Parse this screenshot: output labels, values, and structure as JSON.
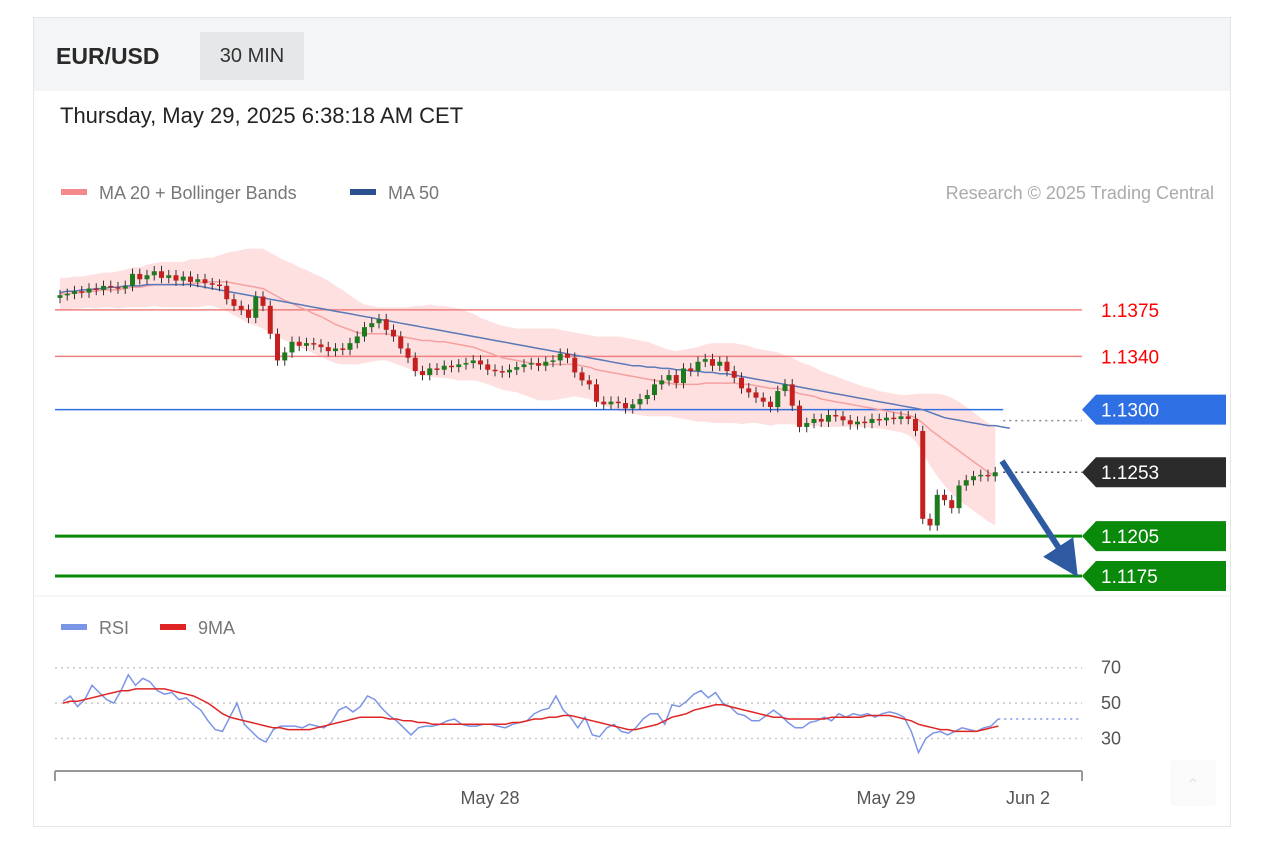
{
  "header": {
    "symbol": "EUR/USD",
    "timeframe": "30 MIN"
  },
  "datetime": "Thursday, May 29, 2025 6:38:18 AM CET",
  "legend": {
    "ma20": "MA 20 + Bollinger Bands",
    "ma50": "MA 50"
  },
  "credit": "Research © 2025 Trading Central",
  "rsi_legend": {
    "rsi": "RSI",
    "ma9": "9MA"
  },
  "colors": {
    "resistance": "#f08080",
    "resistance_text": "#ff0000",
    "pivot": "#2f6fe4",
    "support": "#0a8a0a",
    "current": "#2b2b2b",
    "up_candle": "#1f7a1f",
    "down_candle": "#c42020",
    "bb_fill": "#ffd6d6",
    "ma20": "#f5a0a0",
    "ma50": "#5a79b8",
    "arrow": "#2d5aa0",
    "rsi": "#7b95e6",
    "rsi_ma": "#e02424"
  },
  "chart_data": [
    {
      "type": "candlestick",
      "title": "EUR/USD",
      "timeframe": "30 MIN",
      "x_tick_labels": [
        "May 28",
        "May 29",
        "Jun 2"
      ],
      "ylim": [
        1.116,
        1.1435
      ],
      "levels": [
        {
          "label": "1.1375",
          "value": 1.1375,
          "kind": "resistance"
        },
        {
          "label": "1.1340",
          "value": 1.134,
          "kind": "resistance"
        },
        {
          "label": "1.1300",
          "value": 1.13,
          "kind": "pivot"
        },
        {
          "label": "1.1253",
          "value": 1.1253,
          "kind": "current"
        },
        {
          "label": "1.1205",
          "value": 1.1205,
          "kind": "support"
        },
        {
          "label": "1.1175",
          "value": 1.1175,
          "kind": "support"
        }
      ],
      "series": [
        {
          "name": "MA 20 + Bollinger Bands"
        },
        {
          "name": "MA 50"
        }
      ],
      "close": [
        1.1386,
        1.1387,
        1.1389,
        1.1388,
        1.1391,
        1.139,
        1.1393,
        1.1392,
        1.1391,
        1.1393,
        1.1402,
        1.1398,
        1.1401,
        1.1404,
        1.1399,
        1.1401,
        1.1397,
        1.14,
        1.1396,
        1.1398,
        1.1395,
        1.1394,
        1.1393,
        1.1383,
        1.1378,
        1.1375,
        1.1369,
        1.1385,
        1.1378,
        1.1357,
        1.1337,
        1.1343,
        1.1351,
        1.1348,
        1.135,
        1.1349,
        1.1347,
        1.1344,
        1.1346,
        1.1345,
        1.135,
        1.1355,
        1.1362,
        1.1365,
        1.1368,
        1.136,
        1.1355,
        1.1346,
        1.1339,
        1.1329,
        1.1326,
        1.1331,
        1.133,
        1.1333,
        1.1332,
        1.1334,
        1.1335,
        1.1337,
        1.1334,
        1.133,
        1.1329,
        1.1328,
        1.133,
        1.1332,
        1.1334,
        1.1335,
        1.1333,
        1.1336,
        1.1337,
        1.1342,
        1.1339,
        1.1328,
        1.1322,
        1.1319,
        1.1306,
        1.1304,
        1.1306,
        1.1305,
        1.1301,
        1.1304,
        1.1308,
        1.1311,
        1.1319,
        1.1322,
        1.1326,
        1.132,
        1.1331,
        1.1329,
        1.1336,
        1.1338,
        1.1333,
        1.1336,
        1.1329,
        1.1324,
        1.1316,
        1.1313,
        1.1309,
        1.1306,
        1.1302,
        1.1314,
        1.1319,
        1.1303,
        1.1287,
        1.129,
        1.1293,
        1.1291,
        1.1296,
        1.1295,
        1.1292,
        1.1289,
        1.1291,
        1.129,
        1.1293,
        1.1292,
        1.1294,
        1.1293,
        1.1295,
        1.1293,
        1.1284,
        1.1218,
        1.1213,
        1.1236,
        1.1232,
        1.1226,
        1.1243,
        1.1247,
        1.125,
        1.1251,
        1.125,
        1.1253
      ],
      "ma20": [
        1.1387,
        1.1387,
        1.1388,
        1.1388,
        1.1389,
        1.1389,
        1.139,
        1.139,
        1.139,
        1.1391,
        1.1392,
        1.1392,
        1.1393,
        1.1394,
        1.1394,
        1.1394,
        1.1394,
        1.1394,
        1.1395,
        1.1395,
        1.1396,
        1.1396,
        1.1396,
        1.1396,
        1.1395,
        1.1394,
        1.1393,
        1.1392,
        1.1391,
        1.1388,
        1.1385,
        1.1382,
        1.138,
        1.1377,
        1.1375,
        1.1372,
        1.137,
        1.1367,
        1.1364,
        1.1362,
        1.136,
        1.1358,
        1.1357,
        1.1357,
        1.1357,
        1.1357,
        1.1356,
        1.1355,
        1.1354,
        1.1353,
        1.1352,
        1.1352,
        1.1351,
        1.1351,
        1.135,
        1.1349,
        1.1348,
        1.1347,
        1.1345,
        1.1343,
        1.1341,
        1.1339,
        1.1338,
        1.1337,
        1.1336,
        1.1335,
        1.1334,
        1.1334,
        1.1334,
        1.1334,
        1.1334,
        1.1334,
        1.1333,
        1.1332,
        1.133,
        1.1329,
        1.1328,
        1.1327,
        1.1326,
        1.1325,
        1.1324,
        1.1323,
        1.1322,
        1.1321,
        1.132,
        1.1319,
        1.1319,
        1.1319,
        1.1319,
        1.132,
        1.132,
        1.132,
        1.132,
        1.132,
        1.1319,
        1.1319,
        1.1318,
        1.1317,
        1.1316,
        1.1316,
        1.1315,
        1.1314,
        1.1312,
        1.1311,
        1.131,
        1.1308,
        1.1307,
        1.1306,
        1.1305,
        1.1304,
        1.1303,
        1.1302,
        1.1301,
        1.13,
        1.1299,
        1.1298,
        1.1297,
        1.1296,
        1.1294,
        1.129,
        1.1285,
        1.1281,
        1.1277,
        1.1273,
        1.1269,
        1.1265,
        1.1261,
        1.1257,
        1.1253,
        1.125
      ],
      "ma50": [
        1.1388,
        1.1389,
        1.1389,
        1.139,
        1.139,
        1.1391,
        1.1391,
        1.1392,
        1.1392,
        1.1393,
        1.1393,
        1.1393,
        1.1394,
        1.1394,
        1.1394,
        1.1394,
        1.1394,
        1.1394,
        1.1394,
        1.1393,
        1.1392,
        1.1391,
        1.139,
        1.1389,
        1.1388,
        1.1387,
        1.1386,
        1.1385,
        1.1384,
        1.1383,
        1.1382,
        1.1381,
        1.138,
        1.1379,
        1.1378,
        1.1377,
        1.1376,
        1.1375,
        1.1374,
        1.1373,
        1.1372,
        1.1371,
        1.137,
        1.1369,
        1.1368,
        1.1367,
        1.1366,
        1.1365,
        1.1364,
        1.1363,
        1.1362,
        1.1361,
        1.136,
        1.1359,
        1.1358,
        1.1357,
        1.1356,
        1.1355,
        1.1354,
        1.1353,
        1.1352,
        1.1351,
        1.135,
        1.1349,
        1.1348,
        1.1347,
        1.1346,
        1.1345,
        1.1344,
        1.1343,
        1.1342,
        1.1341,
        1.134,
        1.1339,
        1.1338,
        1.1337,
        1.1336,
        1.1335,
        1.1334,
        1.1333,
        1.1333,
        1.1332,
        1.1332,
        1.1331,
        1.1331,
        1.133,
        1.133,
        1.1329,
        1.1329,
        1.1328,
        1.1328,
        1.1327,
        1.1327,
        1.1326,
        1.1325,
        1.1324,
        1.1323,
        1.1322,
        1.1321,
        1.132,
        1.1319,
        1.1318,
        1.1317,
        1.1316,
        1.1315,
        1.1314,
        1.1313,
        1.1312,
        1.1311,
        1.131,
        1.1309,
        1.1308,
        1.1307,
        1.1306,
        1.1305,
        1.1304,
        1.1303,
        1.1302,
        1.1301,
        1.13,
        1.1298,
        1.1296,
        1.1294,
        1.1293,
        1.1292,
        1.1291,
        1.129,
        1.1289,
        1.1288,
        1.1288,
        1.1287,
        1.1286
      ],
      "bb_width": [
        0.0012,
        0.0012,
        0.0012,
        0.0012,
        0.0012,
        0.0013,
        0.0013,
        0.0013,
        0.0014,
        0.0014,
        0.0015,
        0.0015,
        0.0016,
        0.0016,
        0.0017,
        0.0017,
        0.0017,
        0.0017,
        0.0018,
        0.0018,
        0.0018,
        0.0018,
        0.002,
        0.0022,
        0.0024,
        0.0026,
        0.0028,
        0.0029,
        0.003,
        0.003,
        0.003,
        0.003,
        0.003,
        0.003,
        0.003,
        0.003,
        0.003,
        0.003,
        0.0029,
        0.0028,
        0.0026,
        0.0024,
        0.0022,
        0.0021,
        0.002,
        0.002,
        0.0021,
        0.0022,
        0.0023,
        0.0025,
        0.0026,
        0.0027,
        0.0027,
        0.0027,
        0.0027,
        0.0027,
        0.0026,
        0.0025,
        0.0024,
        0.0024,
        0.0024,
        0.0024,
        0.0024,
        0.0024,
        0.0025,
        0.0026,
        0.0027,
        0.0027,
        0.0027,
        0.0026,
        0.0025,
        0.0024,
        0.0024,
        0.0024,
        0.0025,
        0.0026,
        0.0027,
        0.0028,
        0.0028,
        0.0028,
        0.0028,
        0.0028,
        0.0027,
        0.0026,
        0.0025,
        0.0025,
        0.0026,
        0.0027,
        0.0028,
        0.0029,
        0.003,
        0.003,
        0.003,
        0.003,
        0.003,
        0.0029,
        0.0028,
        0.0028,
        0.0028,
        0.0027,
        0.0026,
        0.0025,
        0.0024,
        0.0023,
        0.0022,
        0.0021,
        0.002,
        0.0019,
        0.0018,
        0.0017,
        0.0016,
        0.0015,
        0.0015,
        0.0014,
        0.0014,
        0.0014,
        0.0014,
        0.0015,
        0.0018,
        0.0022,
        0.0027,
        0.0031,
        0.0034,
        0.0036,
        0.0037,
        0.0037,
        0.0037,
        0.0037,
        0.0037,
        0.0037
      ]
    },
    {
      "type": "line",
      "title": "RSI",
      "ylim": [
        15,
        80
      ],
      "y_ticks": [
        70,
        50,
        30
      ],
      "series": [
        {
          "name": "RSI",
          "values": [
            51,
            54,
            48,
            52,
            60,
            56,
            52,
            50,
            57,
            66,
            60,
            64,
            62,
            57,
            55,
            56,
            52,
            53,
            49,
            46,
            40,
            35,
            34,
            42,
            50,
            38,
            34,
            30,
            28,
            35,
            37,
            37,
            37,
            36,
            38,
            37,
            36,
            39,
            46,
            48,
            45,
            48,
            54,
            52,
            47,
            43,
            40,
            36,
            32,
            36,
            37,
            37,
            38,
            40,
            41,
            38,
            37,
            37,
            38,
            38,
            37,
            36,
            38,
            39,
            40,
            44,
            46,
            47,
            54,
            46,
            42,
            36,
            42,
            32,
            31,
            36,
            38,
            34,
            33,
            36,
            41,
            44,
            44,
            38,
            49,
            48,
            51,
            55,
            57,
            53,
            56,
            50,
            48,
            44,
            43,
            40,
            40,
            43,
            46,
            43,
            39,
            36,
            36,
            39,
            40,
            42,
            40,
            44,
            42,
            44,
            43,
            44,
            42,
            44,
            45,
            44,
            42,
            34,
            22,
            30,
            33,
            34,
            32,
            34,
            36,
            35,
            34,
            36,
            37,
            41
          ]
        },
        {
          "name": "9MA",
          "values": [
            50,
            51,
            51,
            52,
            53,
            54,
            55,
            56,
            57,
            57,
            58,
            58,
            58,
            58,
            58,
            57,
            56,
            55,
            54,
            52,
            50,
            47,
            44,
            42,
            41,
            40,
            39,
            38,
            37,
            36,
            36,
            35,
            35,
            35,
            35,
            36,
            37,
            38,
            39,
            40,
            41,
            42,
            42,
            42,
            42,
            41,
            41,
            40,
            40,
            39,
            39,
            38,
            38,
            38,
            38,
            38,
            38,
            38,
            38,
            38,
            38,
            38,
            39,
            39,
            40,
            41,
            41,
            42,
            42,
            43,
            43,
            42,
            41,
            40,
            39,
            38,
            37,
            36,
            35,
            35,
            36,
            37,
            38,
            40,
            42,
            43,
            44,
            46,
            47,
            48,
            49,
            49,
            48,
            47,
            46,
            45,
            44,
            43,
            42,
            42,
            41,
            41,
            41,
            41,
            41,
            41,
            42,
            42,
            42,
            42,
            42,
            43,
            43,
            43,
            43,
            42,
            41,
            40,
            38,
            37,
            36,
            35,
            35,
            34,
            34,
            34,
            34,
            35,
            36,
            37
          ]
        }
      ]
    }
  ]
}
